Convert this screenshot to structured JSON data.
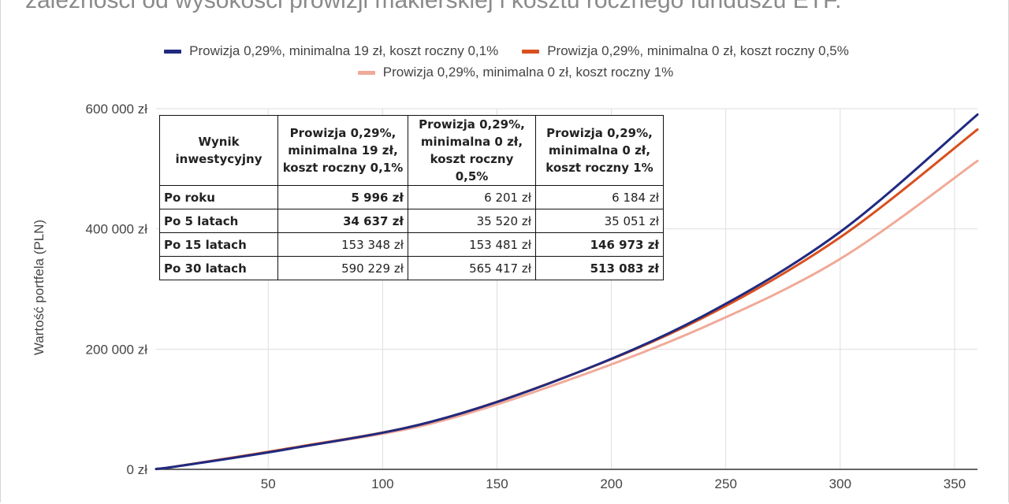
{
  "title": "zależności od wysokości prowizji maklerskiej i kosztu rocznego funduszu ETF.",
  "chart_data": {
    "type": "line",
    "ylabel": "Wartość portfela (PLN)",
    "xlabel": "",
    "xlim": [
      1,
      360
    ],
    "ylim": [
      0,
      600000
    ],
    "x_ticks": [
      50,
      100,
      150,
      200,
      250,
      300,
      350
    ],
    "y_ticks": [
      {
        "value": 0,
        "label": "0 zł"
      },
      {
        "value": 200000,
        "label": "200 000 zł"
      },
      {
        "value": 400000,
        "label": "400 000 zł"
      },
      {
        "value": 600000,
        "label": "600 000 zł"
      }
    ],
    "grid": true,
    "legend_position": "top",
    "series": [
      {
        "name": "Prowizja 0,29%, minimalna 19 zł, koszt roczny 0,1%",
        "color": "#1f2a80",
        "x": [
          1,
          12,
          60,
          120,
          180,
          240,
          300,
          360
        ],
        "y": [
          500,
          5996,
          34637,
          78000,
          153348,
          255000,
          395000,
          590229
        ]
      },
      {
        "name": "Prowizja 0,29%, minimalna 0 zł, koszt roczny 0,5%",
        "color": "#d9501e",
        "x": [
          1,
          12,
          60,
          120,
          180,
          240,
          300,
          360
        ],
        "y": [
          500,
          6201,
          35520,
          78000,
          153481,
          252000,
          386000,
          565417
        ]
      },
      {
        "name": "Prowizja 0,29%, minimalna 0 zł, koszt roczny 1%",
        "color": "#f0aa98",
        "x": [
          1,
          12,
          60,
          120,
          180,
          240,
          300,
          360
        ],
        "y": [
          500,
          6184,
          35051,
          75000,
          146973,
          236000,
          350000,
          513083
        ]
      }
    ]
  },
  "table": {
    "headers": [
      "Wynik inwestycyjny",
      "Prowizja 0,29%, minimalna 19 zł, koszt roczny 0,1%",
      "Prowizja 0,29%, minimalna 0 zł, koszt roczny 0,5%",
      "Prowizja 0,29%, minimalna 0 zł, koszt roczny 1%"
    ],
    "rows": [
      {
        "label": "Po roku",
        "values": [
          "5 996 zł",
          "6 201 zł",
          "6 184 zł"
        ],
        "bold": [
          true,
          false,
          false
        ]
      },
      {
        "label": "Po 5 latach",
        "values": [
          "34 637 zł",
          "35 520 zł",
          "35 051 zł"
        ],
        "bold": [
          true,
          false,
          false
        ]
      },
      {
        "label": "Po 15 latach",
        "values": [
          "153 348 zł",
          "153 481 zł",
          "146 973 zł"
        ],
        "bold": [
          false,
          false,
          true
        ]
      },
      {
        "label": "Po 30 latach",
        "values": [
          "590 229 zł",
          "565 417 zł",
          "513 083 zł"
        ],
        "bold": [
          false,
          false,
          true
        ]
      }
    ]
  }
}
